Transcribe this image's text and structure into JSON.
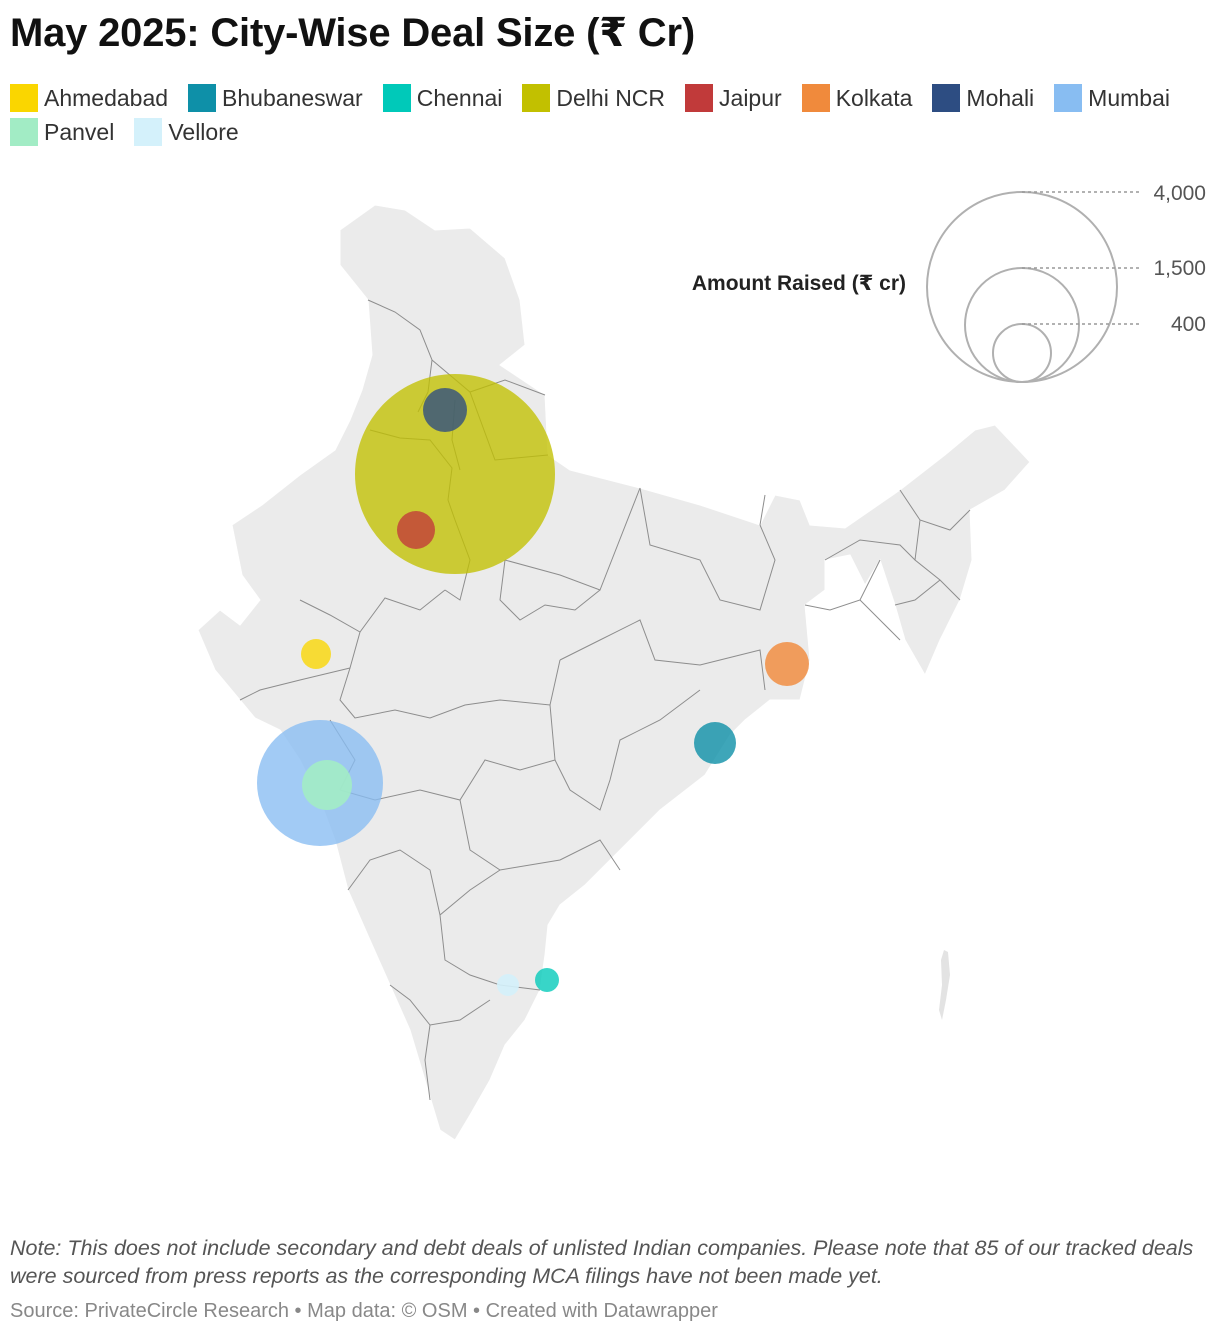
{
  "title": "May 2025: City-Wise Deal Size (₹ Cr)",
  "legend": [
    {
      "label": "Ahmedabad",
      "color": "#fad600"
    },
    {
      "label": "Bhubaneswar",
      "color": "#0e90a8"
    },
    {
      "label": "Chennai",
      "color": "#00c9b9"
    },
    {
      "label": "Delhi NCR",
      "color": "#c2c000"
    },
    {
      "label": "Jaipur",
      "color": "#c13a3a"
    },
    {
      "label": "Kolkata",
      "color": "#f08a3c"
    },
    {
      "label": "Mohali",
      "color": "#2d4d82"
    },
    {
      "label": "Mumbai",
      "color": "#88bdf2"
    },
    {
      "label": "Panvel",
      "color": "#a2ecc5"
    },
    {
      "label": "Vellore",
      "color": "#d4f1fb"
    }
  ],
  "size_legend": {
    "title": "Amount Raised (₹ cr)",
    "values": [
      "4,000",
      "1,500",
      "400"
    ]
  },
  "map": {
    "region": "India",
    "base_color": "#ebebeb",
    "border_color": "#8d8d8d",
    "markers": [
      {
        "city": "Delhi NCR",
        "color": "#c2c000"
      },
      {
        "city": "Mumbai",
        "color": "#88bdf2"
      },
      {
        "city": "Panvel",
        "color": "#a2ecc5"
      },
      {
        "city": "Mohali",
        "color": "#2d4d82"
      },
      {
        "city": "Jaipur",
        "color": "#c13a3a"
      },
      {
        "city": "Ahmedabad",
        "color": "#fad600"
      },
      {
        "city": "Kolkata",
        "color": "#f08a3c"
      },
      {
        "city": "Bhubaneswar",
        "color": "#0e90a8"
      },
      {
        "city": "Chennai",
        "color": "#00c9b9"
      },
      {
        "city": "Vellore",
        "color": "#d4f1fb"
      }
    ]
  },
  "note": "Note: This does not include secondary and debt deals of unlisted Indian companies. Please note that 85 of our tracked deals were sourced from press reports as the corresponding MCA filings have not been made yet.",
  "source": {
    "source": "Source: PrivateCircle Research",
    "map_data": "Map data: © OSM",
    "created": "Created with Datawrapper",
    "separator": " • "
  }
}
